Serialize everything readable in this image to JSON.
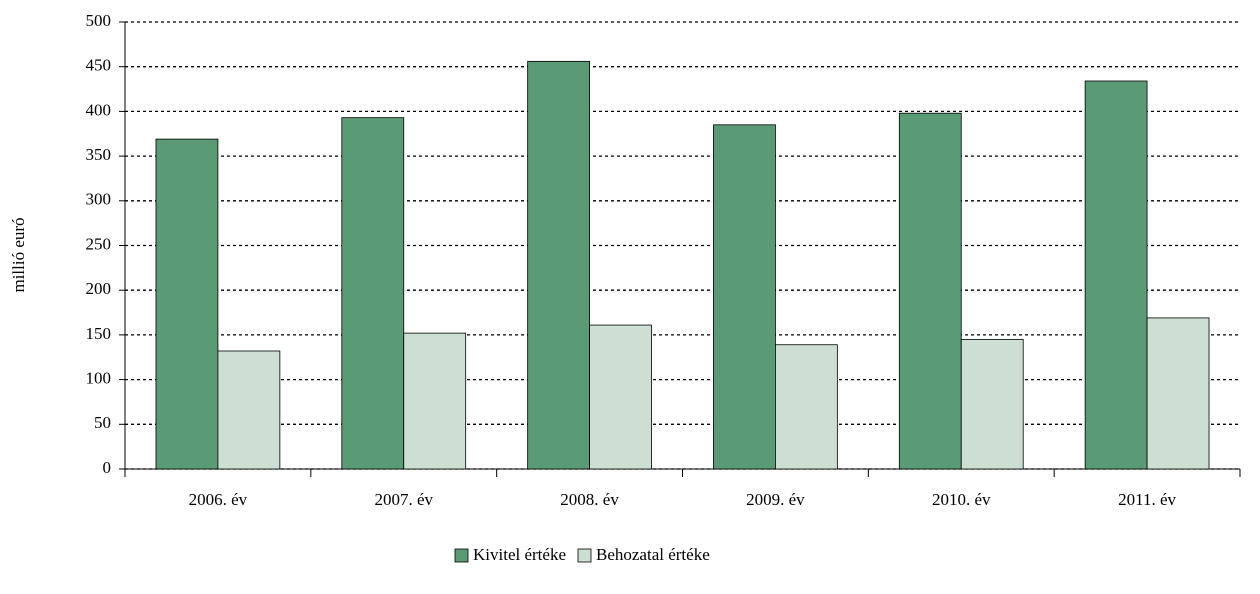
{
  "chart_data": {
    "type": "bar",
    "y_label": "millió euró",
    "categories": [
      "2006. év",
      "2007. év",
      "2008. év",
      "2009. év",
      "2010. év",
      "2011. év"
    ],
    "series": [
      {
        "name": "Kivitel értéke",
        "color": "#5a9a74",
        "values": [
          369,
          393,
          456,
          385,
          398,
          434
        ]
      },
      {
        "name": "Behozatal értéke",
        "color": "#ccdfd2",
        "values": [
          132,
          152,
          161,
          139,
          145,
          169
        ]
      }
    ],
    "ylim": [
      0,
      500
    ],
    "yticks": [
      0,
      50,
      100,
      150,
      200,
      250,
      300,
      350,
      400,
      450,
      500
    ],
    "grid": true,
    "legend": "bottom"
  }
}
